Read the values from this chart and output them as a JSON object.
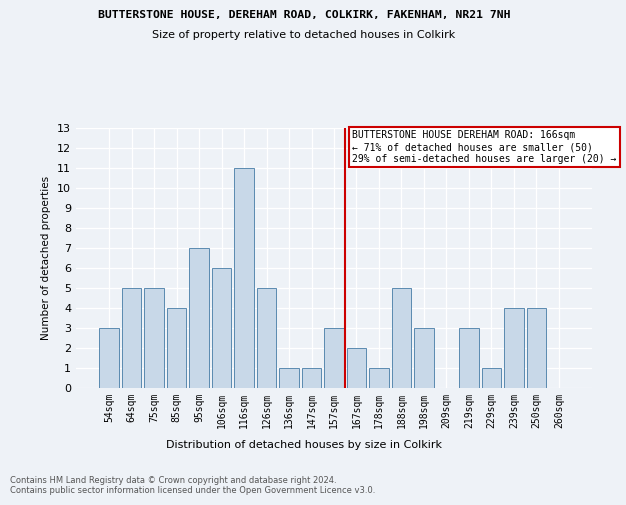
{
  "title1": "BUTTERSTONE HOUSE, DEREHAM ROAD, COLKIRK, FAKENHAM, NR21 7NH",
  "title2": "Size of property relative to detached houses in Colkirk",
  "xlabel": "Distribution of detached houses by size in Colkirk",
  "ylabel": "Number of detached properties",
  "categories": [
    "54sqm",
    "64sqm",
    "75sqm",
    "85sqm",
    "95sqm",
    "106sqm",
    "116sqm",
    "126sqm",
    "136sqm",
    "147sqm",
    "157sqm",
    "167sqm",
    "178sqm",
    "188sqm",
    "198sqm",
    "209sqm",
    "219sqm",
    "229sqm",
    "239sqm",
    "250sqm",
    "260sqm"
  ],
  "values": [
    3,
    5,
    5,
    4,
    7,
    6,
    11,
    5,
    1,
    1,
    3,
    2,
    1,
    5,
    3,
    0,
    3,
    1,
    4,
    4,
    0
  ],
  "bar_color": "#c8d8e8",
  "bar_edge_color": "#5a8ab0",
  "highlight_index": 11,
  "highlight_line_color": "#cc0000",
  "annotation_text": "BUTTERSTONE HOUSE DEREHAM ROAD: 166sqm\n← 71% of detached houses are smaller (50)\n29% of semi-detached houses are larger (20) →",
  "annotation_box_color": "#ffffff",
  "annotation_box_edge_color": "#cc0000",
  "ylim": [
    0,
    13
  ],
  "yticks": [
    0,
    1,
    2,
    3,
    4,
    5,
    6,
    7,
    8,
    9,
    10,
    11,
    12,
    13
  ],
  "footer": "Contains HM Land Registry data © Crown copyright and database right 2024.\nContains public sector information licensed under the Open Government Licence v3.0.",
  "bg_color": "#eef2f7"
}
